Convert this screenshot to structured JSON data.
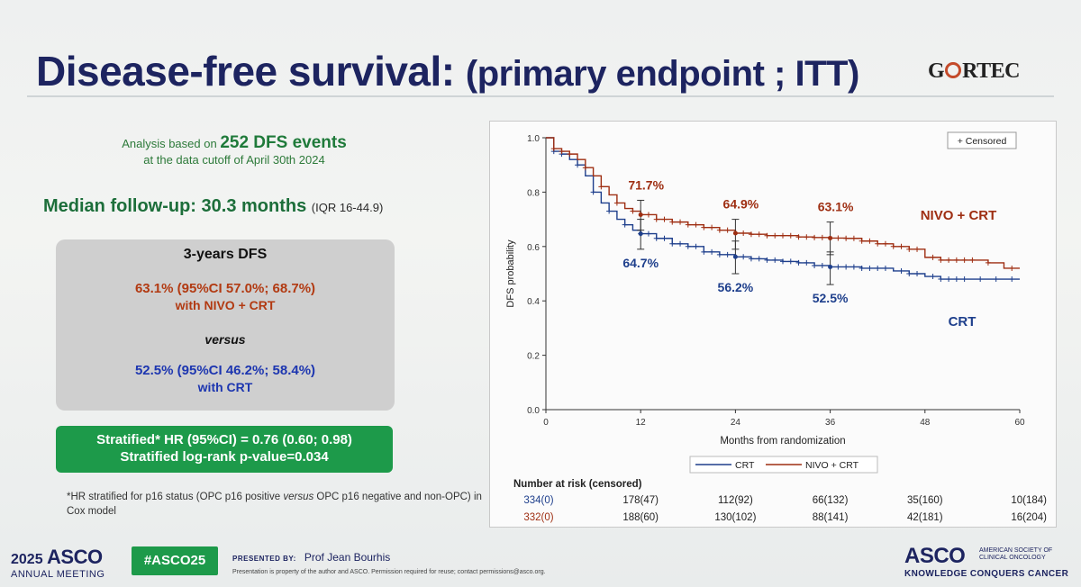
{
  "slide": {
    "title_main": "Disease-free survival:",
    "title_sub": "(primary endpoint ; ITT)",
    "logo": {
      "pre": "G",
      "post": "RTEC"
    },
    "analysis_line1_pre": "Analysis based on",
    "analysis_events": "252 DFS events",
    "analysis_line2": "at the data cutoff of April 30th 2024",
    "median_label": "Median follow-up: 30.3 months",
    "median_iqr": "(IQR 16-44.9)",
    "box": {
      "heading": "3-years DFS",
      "nivo_value": "63.1% (95%CI 57.0%; 68.7%)",
      "nivo_with": "with NIVO + CRT",
      "versus": "versus",
      "crt_value": "52.5% (95%CI 46.2%; 58.4%)",
      "crt_with": "with CRT"
    },
    "hr_line1": "Stratified* HR (95%CI) = 0.76 (0.60; 0.98)",
    "hr_line2": "Stratified log-rank p-value=0.034",
    "footnote_a": "*HR stratified for p16 status (OPC p16 positive",
    "footnote_versus": "versus",
    "footnote_b": "OPC p16 negative and non-OPC) in Cox model",
    "footer": {
      "year": "2025",
      "asco": "ASCO",
      "annual_meeting": "ANNUAL MEETING",
      "hashtag": "#ASCO25",
      "presented_by": "PRESENTED BY:",
      "presenter": "Prof Jean Bourhis",
      "property": "Presentation is property of the author and ASCO. Permission required for reuse; contact permissions@asco.org.",
      "asco_right": "ASCO",
      "society": "AMERICAN SOCIETY OF CLINICAL ONCOLOGY",
      "tagline": "KNOWLEDGE CONQUERS CANCER"
    },
    "colors": {
      "nivo": "#9e2e12",
      "crt": "#1e3f8c",
      "green": "#1d9a4a",
      "navy": "#1d2460"
    }
  },
  "chart_data": {
    "type": "line",
    "subtype": "kaplan-meier",
    "xlabel": "Months from randomization",
    "ylabel": "DFS probability",
    "xlim": [
      0,
      60
    ],
    "ylim": [
      0.0,
      1.0
    ],
    "xticks": [
      0,
      12,
      24,
      36,
      48,
      60
    ],
    "yticks": [
      0.0,
      0.2,
      0.4,
      0.6,
      0.8,
      1.0
    ],
    "ytick_labels": [
      "0.0",
      "0.2",
      "0.4",
      "0.6",
      "0.8",
      "1.0"
    ],
    "censored_legend": "+ Censored",
    "series": [
      {
        "name": "NIVO + CRT",
        "label": "NIVO + CRT",
        "color": "#9e2e12",
        "x": [
          0,
          1,
          2,
          3,
          4,
          5,
          6,
          7,
          8,
          9,
          10,
          11,
          12,
          14,
          16,
          18,
          20,
          22,
          24,
          26,
          28,
          30,
          32,
          34,
          36,
          38,
          40,
          42,
          44,
          46,
          48,
          50,
          52,
          54,
          56,
          58,
          60
        ],
        "y": [
          1.0,
          0.96,
          0.95,
          0.94,
          0.92,
          0.89,
          0.86,
          0.82,
          0.79,
          0.76,
          0.74,
          0.73,
          0.717,
          0.7,
          0.69,
          0.68,
          0.67,
          0.66,
          0.649,
          0.645,
          0.64,
          0.64,
          0.635,
          0.633,
          0.631,
          0.63,
          0.62,
          0.61,
          0.6,
          0.59,
          0.56,
          0.55,
          0.55,
          0.55,
          0.54,
          0.52,
          0.52
        ],
        "censor_x": [
          1,
          2,
          3,
          5,
          7,
          9,
          11,
          13,
          14,
          15,
          16,
          17,
          18,
          19,
          20,
          21,
          22,
          23,
          25,
          26,
          27,
          28,
          29,
          30,
          31,
          32,
          33,
          34,
          35,
          37,
          38,
          39,
          40,
          41,
          42,
          43,
          44,
          45,
          46,
          47,
          49,
          50,
          51,
          52,
          53,
          54,
          56,
          59
        ]
      },
      {
        "name": "CRT",
        "label": "CRT",
        "color": "#1e3f8c",
        "x": [
          0,
          1,
          2,
          3,
          4,
          5,
          6,
          7,
          8,
          9,
          10,
          11,
          12,
          14,
          16,
          18,
          20,
          22,
          24,
          26,
          28,
          30,
          32,
          34,
          36,
          38,
          40,
          42,
          44,
          46,
          48,
          50,
          52,
          54,
          56,
          58,
          60
        ],
        "y": [
          1.0,
          0.95,
          0.94,
          0.92,
          0.9,
          0.86,
          0.8,
          0.76,
          0.73,
          0.7,
          0.68,
          0.66,
          0.647,
          0.63,
          0.61,
          0.6,
          0.58,
          0.57,
          0.562,
          0.555,
          0.55,
          0.545,
          0.54,
          0.53,
          0.525,
          0.525,
          0.52,
          0.52,
          0.51,
          0.5,
          0.49,
          0.48,
          0.48,
          0.48,
          0.48,
          0.48,
          0.48
        ]
      }
    ],
    "censor_x_crt": [
      1,
      2,
      4,
      6,
      8,
      10,
      12,
      13,
      14,
      15,
      16,
      17,
      18,
      19,
      20,
      21,
      22,
      23,
      25,
      26,
      27,
      28,
      29,
      30,
      31,
      32,
      33,
      34,
      35,
      37,
      38,
      39,
      40,
      41,
      42,
      43,
      45,
      46,
      47,
      49,
      50,
      51,
      52,
      53,
      55,
      57,
      59
    ],
    "annotations": [
      {
        "x": 12,
        "y": 0.717,
        "text": "71.7%",
        "series": "NIVO + CRT",
        "ci": [
          0.66,
          0.77
        ]
      },
      {
        "x": 24,
        "y": 0.649,
        "text": "64.9%",
        "series": "NIVO + CRT",
        "ci": [
          0.59,
          0.7
        ]
      },
      {
        "x": 36,
        "y": 0.631,
        "text": "63.1%",
        "series": "NIVO + CRT",
        "ci": [
          0.57,
          0.69
        ]
      },
      {
        "x": 12,
        "y": 0.647,
        "text": "64.7%",
        "series": "CRT",
        "ci": [
          0.59,
          0.7
        ]
      },
      {
        "x": 24,
        "y": 0.562,
        "text": "56.2%",
        "series": "CRT",
        "ci": [
          0.5,
          0.62
        ]
      },
      {
        "x": 36,
        "y": 0.525,
        "text": "52.5%",
        "series": "CRT",
        "ci": [
          0.46,
          0.58
        ]
      }
    ],
    "series_labels": {
      "nivo": "NIVO + CRT",
      "crt": "CRT"
    },
    "legend": [
      "CRT",
      "NIVO + CRT"
    ],
    "risk_table": {
      "title": "Number at risk (censored)",
      "crt": [
        "334(0)",
        "178(47)",
        "112(92)",
        "66(132)",
        "35(160)",
        "10(184)"
      ],
      "nivo": [
        "332(0)",
        "188(60)",
        "130(102)",
        "88(141)",
        "42(181)",
        "16(204)"
      ]
    }
  }
}
